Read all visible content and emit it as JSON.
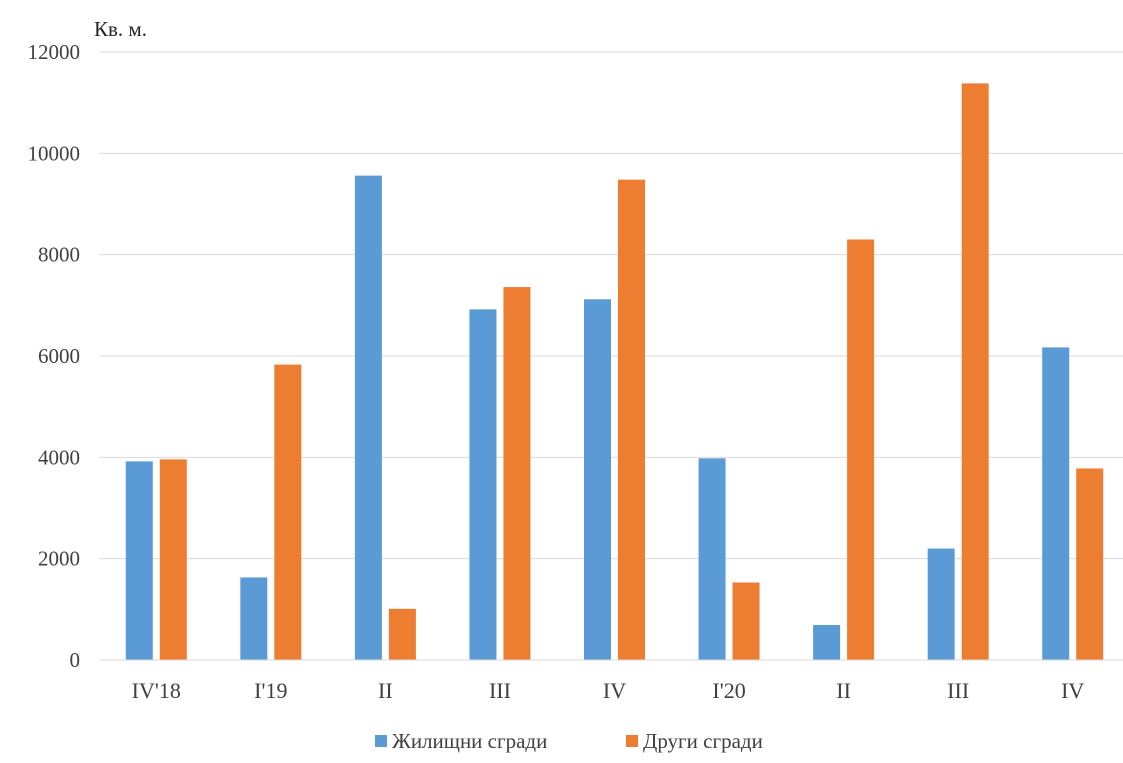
{
  "chart_data": {
    "type": "bar",
    "ylabel": "Кв. м.",
    "ylim": [
      0,
      12000
    ],
    "yticks": [
      "0",
      "2000",
      "4000",
      "6000",
      "8000",
      "10000",
      "12000"
    ],
    "categories": [
      "IV'18",
      "I'19",
      "II",
      "III",
      "IV",
      "I'20",
      "II",
      "III",
      "IV"
    ],
    "series": [
      {
        "name": "Жилищни сгради",
        "color": "#5b9bd5",
        "values": [
          3920,
          1630,
          9560,
          6920,
          7120,
          3980,
          690,
          2200,
          6170
        ]
      },
      {
        "name": "Други сгради",
        "color": "#ed7d31",
        "values": [
          3960,
          5830,
          1010,
          7360,
          9480,
          1530,
          8300,
          11380,
          3780
        ]
      }
    ],
    "grid": true,
    "legend_position": "bottom"
  }
}
